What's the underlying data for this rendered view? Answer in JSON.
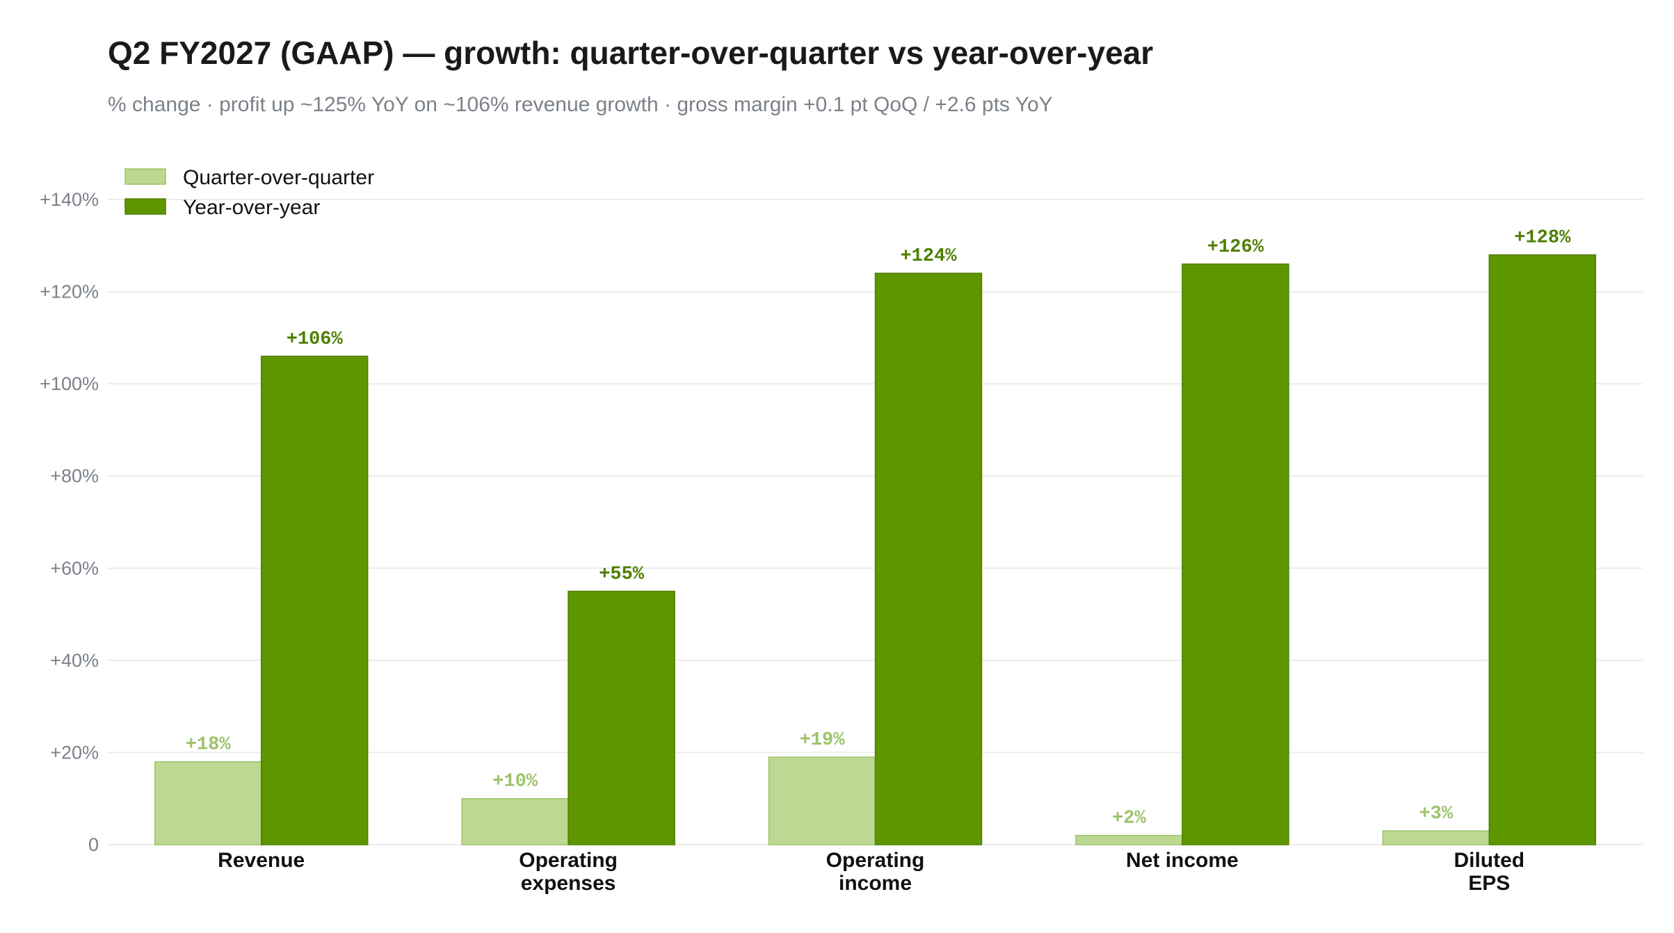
{
  "chart_data": {
    "type": "bar",
    "title": "Q2 FY2027 (GAAP) — growth: quarter-over-quarter vs year-over-year",
    "subtitle": "% change · profit up ~125% YoY on ~106% revenue growth · gross margin +0.1 pt QoQ / +2.6 pts YoY",
    "xlabel": "",
    "ylabel": "",
    "ylim": [
      0,
      140
    ],
    "y_ticks": [
      0,
      20,
      40,
      60,
      80,
      100,
      120,
      140
    ],
    "y_tick_labels": [
      "0",
      "+20%",
      "+40%",
      "+60%",
      "+80%",
      "+100%",
      "+120%",
      "+140%"
    ],
    "grid": true,
    "legend_position": "top-left",
    "categories": [
      [
        "Revenue"
      ],
      [
        "Operating",
        "expenses"
      ],
      [
        "Operating",
        "income"
      ],
      [
        "Net income"
      ],
      [
        "Diluted",
        "EPS"
      ]
    ],
    "series": [
      {
        "name": "Quarter-over-quarter",
        "color": "#bdd890",
        "stroke": "#9cc36a",
        "label_color": "#9cc36a",
        "values": [
          18,
          10,
          19,
          2,
          3
        ],
        "labels": [
          "+18%",
          "+10%",
          "+19%",
          "+2%",
          "+3%"
        ]
      },
      {
        "name": "Year-over-year",
        "color": "#5e9600",
        "stroke": "#4e7f00",
        "label_color": "#4e7f00",
        "values": [
          106,
          55,
          124,
          126,
          128
        ],
        "labels": [
          "+106%",
          "+55%",
          "+124%",
          "+126%",
          "+128%"
        ]
      }
    ]
  }
}
